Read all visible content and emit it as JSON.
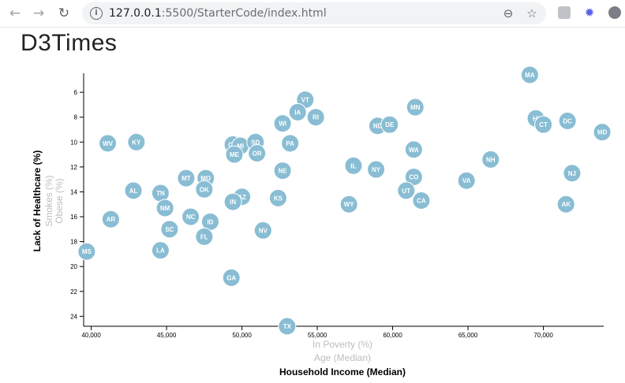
{
  "browser": {
    "url_host": "127.0.0.1",
    "url_rest": ":5500/StarterCode/index.html",
    "back_glyph": "←",
    "forward_glyph": "→",
    "reload_glyph": "↻",
    "info_glyph": "i",
    "zoom_glyph": "⊖",
    "star_glyph": "☆"
  },
  "page": {
    "title": "D3Times"
  },
  "chart_data": {
    "type": "scatter",
    "title": "",
    "x_labels": [
      {
        "text": "In Poverty (%)",
        "active": false
      },
      {
        "text": "Age (Median)",
        "active": false
      },
      {
        "text": "Household Income (Median)",
        "active": true
      }
    ],
    "y_labels": [
      {
        "text": "Lack of Healthcare (%)",
        "active": true
      },
      {
        "text": "Smokes (%)",
        "active": false
      },
      {
        "text": "Obese (%)",
        "active": false
      }
    ],
    "xlim": [
      39500,
      74000
    ],
    "ylim": [
      4.6,
      24.8
    ],
    "y_inverted": true,
    "x_ticks": [
      {
        "value": 40000,
        "label": "40,000"
      },
      {
        "value": 45000,
        "label": "45,000"
      },
      {
        "value": 50000,
        "label": "50,000"
      },
      {
        "value": 55000,
        "label": "55,000"
      },
      {
        "value": 60000,
        "label": "60,000"
      },
      {
        "value": 65000,
        "label": "65,000"
      },
      {
        "value": 70000,
        "label": "70,000"
      }
    ],
    "y_ticks": [
      {
        "value": 6,
        "label": "6"
      },
      {
        "value": 8,
        "label": "8"
      },
      {
        "value": 10,
        "label": "10"
      },
      {
        "value": 12,
        "label": "12"
      },
      {
        "value": 14,
        "label": "14"
      },
      {
        "value": 16,
        "label": "16"
      },
      {
        "value": 18,
        "label": "18"
      },
      {
        "value": 20,
        "label": "20"
      },
      {
        "value": 22,
        "label": "22"
      },
      {
        "value": 24,
        "label": "24"
      }
    ],
    "marker_color": "#89bdd3",
    "points": [
      {
        "abbr": "MA",
        "x": 69100,
        "y": 4.6
      },
      {
        "abbr": "VT",
        "x": 54200,
        "y": 6.6
      },
      {
        "abbr": "IA",
        "x": 53700,
        "y": 7.6
      },
      {
        "abbr": "RI",
        "x": 54900,
        "y": 8.0
      },
      {
        "abbr": "MN",
        "x": 61500,
        "y": 7.2
      },
      {
        "abbr": "HI",
        "x": 69500,
        "y": 8.1
      },
      {
        "abbr": "DC",
        "x": 71600,
        "y": 8.3
      },
      {
        "abbr": "CT",
        "x": 70000,
        "y": 8.6
      },
      {
        "abbr": "MD",
        "x": 73900,
        "y": 9.2
      },
      {
        "abbr": "WI",
        "x": 52700,
        "y": 8.5
      },
      {
        "abbr": "ND",
        "x": 59000,
        "y": 8.7
      },
      {
        "abbr": "DE",
        "x": 59800,
        "y": 8.6
      },
      {
        "abbr": "WV",
        "x": 41100,
        "y": 10.1
      },
      {
        "abbr": "KY",
        "x": 43000,
        "y": 10.0
      },
      {
        "abbr": "OH",
        "x": 49400,
        "y": 10.2
      },
      {
        "abbr": "MI",
        "x": 49900,
        "y": 10.3
      },
      {
        "abbr": "SD",
        "x": 50900,
        "y": 10.0
      },
      {
        "abbr": "PA",
        "x": 53200,
        "y": 10.1
      },
      {
        "abbr": "ME",
        "x": 49500,
        "y": 11.0
      },
      {
        "abbr": "OR",
        "x": 51000,
        "y": 10.9
      },
      {
        "abbr": "WA",
        "x": 61400,
        "y": 10.6
      },
      {
        "abbr": "IL",
        "x": 57400,
        "y": 11.9
      },
      {
        "abbr": "NY",
        "x": 58900,
        "y": 12.2
      },
      {
        "abbr": "NE",
        "x": 52700,
        "y": 12.3
      },
      {
        "abbr": "NH",
        "x": 66500,
        "y": 11.4
      },
      {
        "abbr": "NJ",
        "x": 71900,
        "y": 12.5
      },
      {
        "abbr": "MT",
        "x": 46300,
        "y": 12.9
      },
      {
        "abbr": "MO",
        "x": 47600,
        "y": 12.9
      },
      {
        "abbr": "CO",
        "x": 61400,
        "y": 12.8
      },
      {
        "abbr": "VA",
        "x": 64900,
        "y": 13.1
      },
      {
        "abbr": "AL",
        "x": 42800,
        "y": 13.9
      },
      {
        "abbr": "TN",
        "x": 44600,
        "y": 14.1
      },
      {
        "abbr": "OK",
        "x": 47500,
        "y": 13.8
      },
      {
        "abbr": "UT",
        "x": 60900,
        "y": 13.9
      },
      {
        "abbr": "AZ",
        "x": 50000,
        "y": 14.4
      },
      {
        "abbr": "IN",
        "x": 49400,
        "y": 14.8
      },
      {
        "abbr": "KS",
        "x": 52400,
        "y": 14.5
      },
      {
        "abbr": "CA",
        "x": 61900,
        "y": 14.7
      },
      {
        "abbr": "NM",
        "x": 44900,
        "y": 15.3
      },
      {
        "abbr": "WY",
        "x": 57100,
        "y": 15.0
      },
      {
        "abbr": "AK",
        "x": 71500,
        "y": 15.0
      },
      {
        "abbr": "NC",
        "x": 46600,
        "y": 16.0
      },
      {
        "abbr": "ID",
        "x": 47900,
        "y": 16.4
      },
      {
        "abbr": "AR",
        "x": 41300,
        "y": 16.2
      },
      {
        "abbr": "SC",
        "x": 45200,
        "y": 17.0
      },
      {
        "abbr": "NV",
        "x": 51400,
        "y": 17.1
      },
      {
        "abbr": "FL",
        "x": 47500,
        "y": 17.6
      },
      {
        "abbr": "LA",
        "x": 44600,
        "y": 18.7
      },
      {
        "abbr": "MS",
        "x": 39700,
        "y": 18.8
      },
      {
        "abbr": "GA",
        "x": 49300,
        "y": 20.9
      },
      {
        "abbr": "TX",
        "x": 53000,
        "y": 24.8
      }
    ]
  }
}
